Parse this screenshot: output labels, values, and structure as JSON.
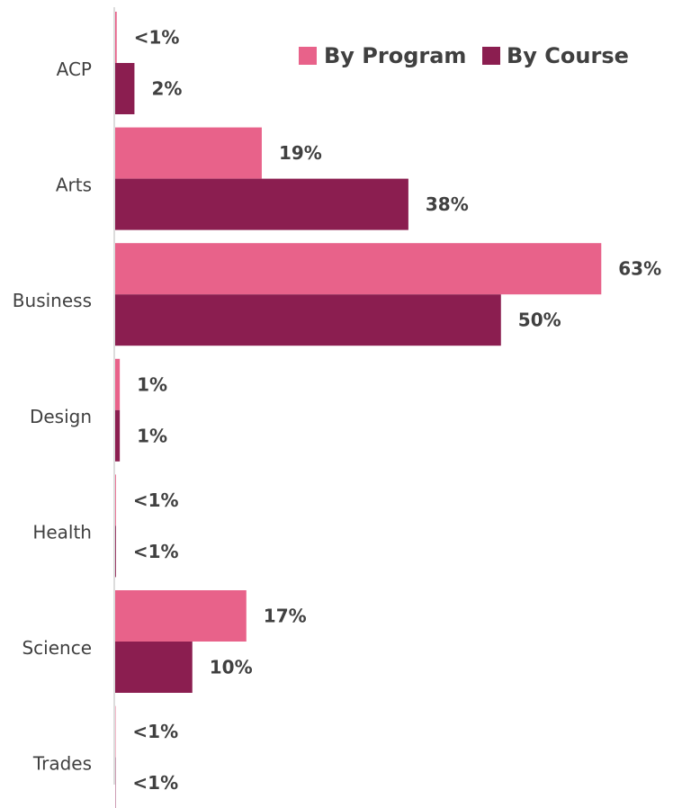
{
  "colors": {
    "program": "#E8628A",
    "course": "#8B1E50",
    "axis": "#D0D0D0",
    "text": "#404040"
  },
  "legend": {
    "position": "top-right"
  },
  "chart_data": {
    "type": "bar",
    "orientation": "horizontal",
    "categories": [
      "ACP",
      "Arts",
      "Business",
      "Design",
      "Health",
      "Science",
      "Trades"
    ],
    "series": [
      {
        "name": "By Program",
        "values": [
          0.2,
          19,
          63,
          0.6,
          0.1,
          17,
          0.05
        ],
        "labels": [
          "<1%",
          "19%",
          "63%",
          "1%",
          "<1%",
          "17%",
          "<1%"
        ]
      },
      {
        "name": "By Course",
        "values": [
          2.5,
          38,
          50,
          0.6,
          0.1,
          10,
          0.05
        ],
        "labels": [
          "2%",
          "38%",
          "50%",
          "1%",
          "<1%",
          "10%",
          "<1%"
        ]
      }
    ],
    "unit": "%",
    "xlim": [
      0,
      66
    ],
    "grid": false
  }
}
